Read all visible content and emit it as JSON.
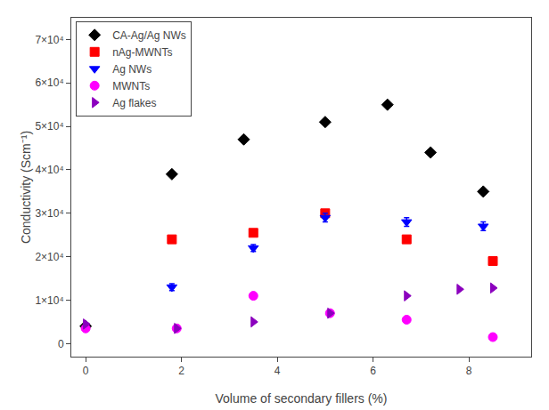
{
  "chart_data": {
    "type": "scatter",
    "xlabel": "Volume of secondary fillers (%)",
    "ylabel": "Conductivity (Scm⁻¹)",
    "xlim": [
      -0.3,
      9.3
    ],
    "ylim": [
      -3000,
      75000
    ],
    "xticks": [
      0,
      2,
      4,
      6,
      8
    ],
    "yticks": [
      0,
      {
        "value": 10000,
        "label": "1×10⁴"
      },
      {
        "value": 20000,
        "label": "2×10⁴"
      },
      {
        "value": 30000,
        "label": "3×10⁴"
      },
      {
        "value": 40000,
        "label": "4×10⁴"
      },
      {
        "value": 50000,
        "label": "5×10⁴"
      },
      {
        "value": 60000,
        "label": "6×10⁴"
      },
      {
        "value": 70000,
        "label": "7×10⁴"
      }
    ],
    "grid": false,
    "legend": "upper left",
    "series": [
      {
        "name": "CA-Ag/Ag NWs",
        "color": "black",
        "marker": "diamond",
        "x": [
          0,
          1.8,
          3.3,
          5.0,
          6.3,
          7.2,
          8.3
        ],
        "values": [
          4000,
          39000,
          47000,
          51000,
          55000,
          44000,
          35000
        ]
      },
      {
        "name": "nAg-MWNTs",
        "color": "#FF0000",
        "marker": "square",
        "x": [
          1.8,
          3.5,
          5.0,
          6.7,
          8.5
        ],
        "values": [
          24000,
          25500,
          30000,
          24000,
          19000
        ]
      },
      {
        "name": "Ag NWs",
        "color": "#0000FF",
        "marker": "triangle-down",
        "x": [
          1.8,
          3.5,
          5.0,
          6.7,
          8.3
        ],
        "values": [
          13000,
          22000,
          29000,
          28000,
          27000
        ],
        "yerr": [
          800,
          800,
          1000,
          1000,
          1000
        ]
      },
      {
        "name": "MWNTs",
        "color": "#FF00FF",
        "marker": "circle",
        "x": [
          0,
          1.9,
          3.5,
          5.1,
          6.7,
          8.5
        ],
        "values": [
          3500,
          3500,
          11000,
          7000,
          5500,
          1500
        ]
      },
      {
        "name": "Ag flakes",
        "color": "#8B00BE",
        "marker": "triangle-right",
        "x": [
          0,
          1.9,
          3.5,
          5.1,
          6.7,
          7.8,
          8.5
        ],
        "values": [
          4500,
          3500,
          5000,
          7000,
          11000,
          12500,
          12800
        ]
      }
    ]
  }
}
